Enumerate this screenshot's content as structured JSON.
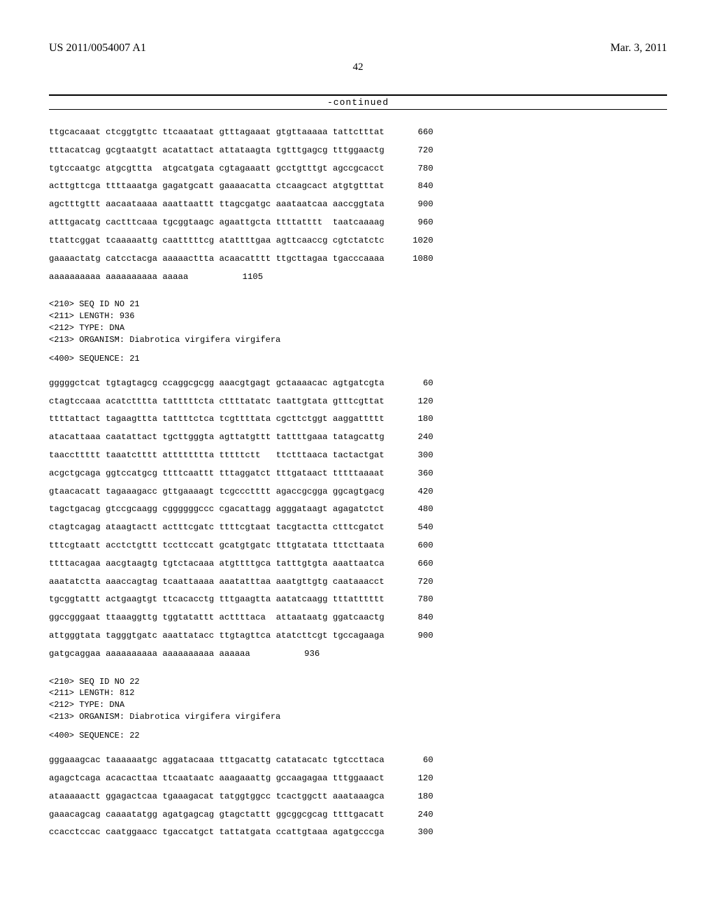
{
  "header": {
    "left": "US 2011/0054007 A1",
    "right": "Mar. 3, 2011"
  },
  "pageNumber": "42",
  "continuedLabel": "-continued",
  "blocks": [
    {
      "header": "",
      "label": "",
      "lines": [
        {
          "g": [
            "ttgcacaaat",
            "ctcggtgttc",
            "ttcaaataat",
            "gtttagaaat",
            "gtgttaaaaa",
            "tattctttat"
          ],
          "pos": "660"
        },
        {
          "g": [
            "tttacatcag",
            "gcgtaatgtt",
            "acatattact",
            "attataagta",
            "tgtttgagcg",
            "tttggaactg"
          ],
          "pos": "720"
        },
        {
          "g": [
            "tgtccaatgc",
            "atgcgttta",
            "atgcatgata",
            "cgtagaaatt",
            "gcctgtttgt",
            "agccgcacct"
          ],
          "pos": "780"
        },
        {
          "g": [
            "acttgttcga",
            "ttttaaatga",
            "gagatgcatt",
            "gaaaacatta",
            "ctcaagcact",
            "atgtgtttat"
          ],
          "pos": "840"
        },
        {
          "g": [
            "agctttgttt",
            "aacaataaaa",
            "aaattaattt",
            "ttagcgatgc",
            "aaataatcaa",
            "aaccggtata"
          ],
          "pos": "900"
        },
        {
          "g": [
            "atttgacatg",
            "cactttcaaa",
            "tgcggtaagc",
            "agaattgcta",
            "ttttatttt",
            "taatcaaaag"
          ],
          "pos": "960"
        },
        {
          "g": [
            "ttattcggat",
            "tcaaaaattg",
            "caatttttcg",
            "atattttgaa",
            "agttcaaccg",
            "cgtctatctc"
          ],
          "pos": "1020"
        },
        {
          "g": [
            "gaaaactatg",
            "catcctacga",
            "aaaaacttta",
            "acaacatttt",
            "ttgcttagaa",
            "tgacccaaaa"
          ],
          "pos": "1080"
        },
        {
          "g": [
            "aaaaaaaaaa",
            "aaaaaaaaaa",
            "aaaaa"
          ],
          "pos": "1105"
        }
      ]
    },
    {
      "header": "<210> SEQ ID NO 21\n<211> LENGTH: 936\n<212> TYPE: DNA\n<213> ORGANISM: Diabrotica virgifera virgifera",
      "label": "<400> SEQUENCE: 21",
      "lines": [
        {
          "g": [
            "gggggctcat",
            "tgtagtagcg",
            "ccaggcgcgg",
            "aaacgtgagt",
            "gctaaaacac",
            "agtgatcgta"
          ],
          "pos": "60"
        },
        {
          "g": [
            "ctagtccaaa",
            "acatctttta",
            "tatttttcta",
            "cttttatatc",
            "taattgtata",
            "gtttcgttat"
          ],
          "pos": "120"
        },
        {
          "g": [
            "ttttattact",
            "tagaagttta",
            "tattttctca",
            "tcgttttata",
            "cgcttctggt",
            "aaggattttt"
          ],
          "pos": "180"
        },
        {
          "g": [
            "atacattaaa",
            "caatattact",
            "tgcttgggta",
            "agttatgttt",
            "tattttgaaa",
            "tatagcattg"
          ],
          "pos": "240"
        },
        {
          "g": [
            "taaccttttt",
            "taaatctttt",
            "atttttttta",
            "tttttctt",
            "ttctttaaca",
            "tactactgat"
          ],
          "pos": "300"
        },
        {
          "g": [
            "acgctgcaga",
            "ggtccatgcg",
            "ttttcaattt",
            "tttaggatct",
            "tttgataact",
            "tttttaaaat"
          ],
          "pos": "360"
        },
        {
          "g": [
            "gtaacacatt",
            "tagaaagacc",
            "gttgaaaagt",
            "tcgccctttt",
            "agaccgcgga",
            "ggcagtgacg"
          ],
          "pos": "420"
        },
        {
          "g": [
            "tagctgacag",
            "gtccgcaagg",
            "cggggggccc",
            "cgacattagg",
            "agggataagt",
            "agagatctct"
          ],
          "pos": "480"
        },
        {
          "g": [
            "ctagtcagag",
            "ataagtactt",
            "actttcgatc",
            "ttttcgtaat",
            "tacgtactta",
            "ctttcgatct"
          ],
          "pos": "540"
        },
        {
          "g": [
            "tttcgtaatt",
            "acctctgttt",
            "tccttccatt",
            "gcatgtgatc",
            "tttgtatata",
            "tttcttaata"
          ],
          "pos": "600"
        },
        {
          "g": [
            "ttttacagaa",
            "aacgtaagtg",
            "tgtctacaaa",
            "atgttttgca",
            "tatttgtgta",
            "aaattaatca"
          ],
          "pos": "660"
        },
        {
          "g": [
            "aaatatctta",
            "aaaccagtag",
            "tcaattaaaa",
            "aaatatttaa",
            "aaatgttgtg",
            "caataaacct"
          ],
          "pos": "720"
        },
        {
          "g": [
            "tgcggtattt",
            "actgaagtgt",
            "ttcacacctg",
            "tttgaagtta",
            "aatatcaagg",
            "tttatttttt"
          ],
          "pos": "780"
        },
        {
          "g": [
            "ggccgggaat",
            "ttaaaggttg",
            "tggtatattt",
            "acttttaca",
            "attaataatg",
            "ggatcaactg"
          ],
          "pos": "840"
        },
        {
          "g": [
            "attgggtata",
            "tagggtgatc",
            "aaattatacc",
            "ttgtagttca",
            "atatcttcgt",
            "tgccagaaga"
          ],
          "pos": "900"
        },
        {
          "g": [
            "gatgcaggaa",
            "aaaaaaaaaa",
            "aaaaaaaaaa",
            "aaaaaa"
          ],
          "pos": "936"
        }
      ]
    },
    {
      "header": "<210> SEQ ID NO 22\n<211> LENGTH: 812\n<212> TYPE: DNA\n<213> ORGANISM: Diabrotica virgifera virgifera",
      "label": "<400> SEQUENCE: 22",
      "lines": [
        {
          "g": [
            "gggaaagcac",
            "taaaaaatgc",
            "aggatacaaa",
            "tttgacattg",
            "catatacatc",
            "tgtccttaca"
          ],
          "pos": "60"
        },
        {
          "g": [
            "agagctcaga",
            "acacacttaa",
            "ttcaataatc",
            "aaagaaattg",
            "gccaagagaa",
            "tttggaaact"
          ],
          "pos": "120"
        },
        {
          "g": [
            "ataaaaactt",
            "ggagactcaa",
            "tgaaagacat",
            "tatggtggcc",
            "tcactggctt",
            "aaataaagca"
          ],
          "pos": "180"
        },
        {
          "g": [
            "gaaacagcag",
            "caaaatatgg",
            "agatgagcag",
            "gtagctattt",
            "ggcggcgcag",
            "ttttgacatt"
          ],
          "pos": "240"
        },
        {
          "g": [
            "ccacctccac",
            "caatggaacc",
            "tgaccatgct",
            "tattatgata",
            "ccattgtaaa",
            "agatgcccga"
          ],
          "pos": "300"
        }
      ]
    }
  ]
}
